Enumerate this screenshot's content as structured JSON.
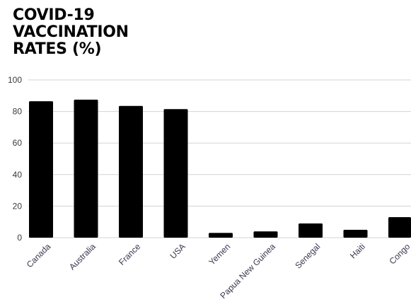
{
  "chart_data": {
    "type": "bar",
    "title": "COVID-19\nVACCINATION\nRATES (%)",
    "categories": [
      "Canada",
      "Australia",
      "France",
      "USA",
      "Yemen",
      "Papua New Guinea",
      "Senegal",
      "Haiti",
      "Congo"
    ],
    "values": [
      86.5,
      87.5,
      83.5,
      81.5,
      3,
      4,
      9,
      5,
      13
    ],
    "ylim": [
      0,
      100
    ],
    "yticks": [
      "0",
      "20",
      "40",
      "60",
      "80",
      "100"
    ],
    "grid": true,
    "bar_color": "#000000",
    "gridline_color": "#d3d3d3"
  }
}
